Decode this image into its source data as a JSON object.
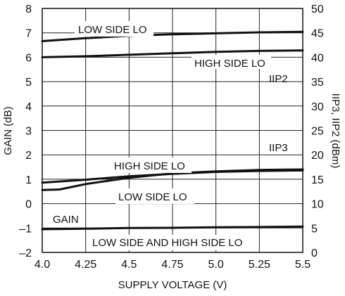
{
  "chart_data": {
    "type": "line",
    "xlabel": "SUPPLY VOLTAGE (V)",
    "ylabel_left": "GAIN (dB)",
    "ylabel_right": "IIP3, IIP2 (dBm)",
    "xlim": [
      4.0,
      5.5
    ],
    "ylim_left": [
      -2,
      8
    ],
    "ylim_right": [
      0,
      50
    ],
    "grid": true,
    "x_ticks": [
      4.0,
      4.25,
      4.5,
      4.75,
      5.0,
      5.25,
      5.5
    ],
    "x_tick_labels": [
      "4.0",
      "4.25",
      "4.5",
      "4.75",
      "5.0",
      "5.25",
      "5.5"
    ],
    "y_left_ticks": [
      -2,
      -1,
      0,
      1,
      2,
      3,
      4,
      5,
      6,
      7,
      8
    ],
    "y_left_tick_labels": [
      "–2",
      "–1",
      "0",
      "1",
      "2",
      "3",
      "4",
      "5",
      "6",
      "7",
      "8"
    ],
    "y_right_ticks": [
      0,
      5,
      10,
      15,
      20,
      25,
      30,
      35,
      40,
      45,
      50
    ],
    "y_right_tick_labels": [
      "0",
      "5",
      "10",
      "15",
      "20",
      "25",
      "30",
      "35",
      "40",
      "45",
      "50"
    ],
    "series": [
      {
        "axis": "right",
        "x": [
          4.0,
          4.25,
          4.5,
          4.75,
          5.0,
          5.25,
          5.5
        ],
        "y": [
          43.3,
          43.9,
          44.4,
          44.7,
          44.9,
          45.1,
          45.2
        ]
      },
      {
        "axis": "right",
        "x": [
          4.0,
          4.25,
          4.5,
          4.75,
          5.0,
          5.25,
          5.5
        ],
        "y": [
          40.0,
          40.2,
          40.5,
          40.8,
          41.1,
          41.3,
          41.4
        ]
      },
      {
        "axis": "right",
        "x": [
          4.0,
          4.25,
          4.5,
          4.75,
          5.0,
          5.25,
          5.5
        ],
        "y": [
          14.3,
          14.9,
          15.6,
          16.1,
          16.5,
          16.7,
          16.8
        ]
      },
      {
        "axis": "right",
        "x": [
          4.0,
          4.1,
          4.25,
          4.5,
          4.75,
          5.0,
          5.25,
          5.5
        ],
        "y": [
          12.8,
          12.9,
          14.0,
          15.3,
          16.2,
          16.6,
          16.9,
          17.0
        ]
      },
      {
        "axis": "left",
        "x": [
          4.0,
          4.25,
          4.5,
          4.75,
          5.0,
          5.25,
          5.5
        ],
        "y": [
          -1.05,
          -1.03,
          -1.0,
          -0.99,
          -0.97,
          -0.96,
          -0.94
        ]
      }
    ],
    "annotations": [
      {
        "text": "LOW SIDE LO"
      },
      {
        "text": "HIGH SIDE LO"
      },
      {
        "text": "IIP2"
      },
      {
        "text": "IIP3"
      },
      {
        "text": "HIGH SIDE LO"
      },
      {
        "text": "LOW SIDE LO"
      },
      {
        "text": "GAIN"
      },
      {
        "text": "LOW SIDE AND HIGH SIDE LO"
      }
    ]
  }
}
